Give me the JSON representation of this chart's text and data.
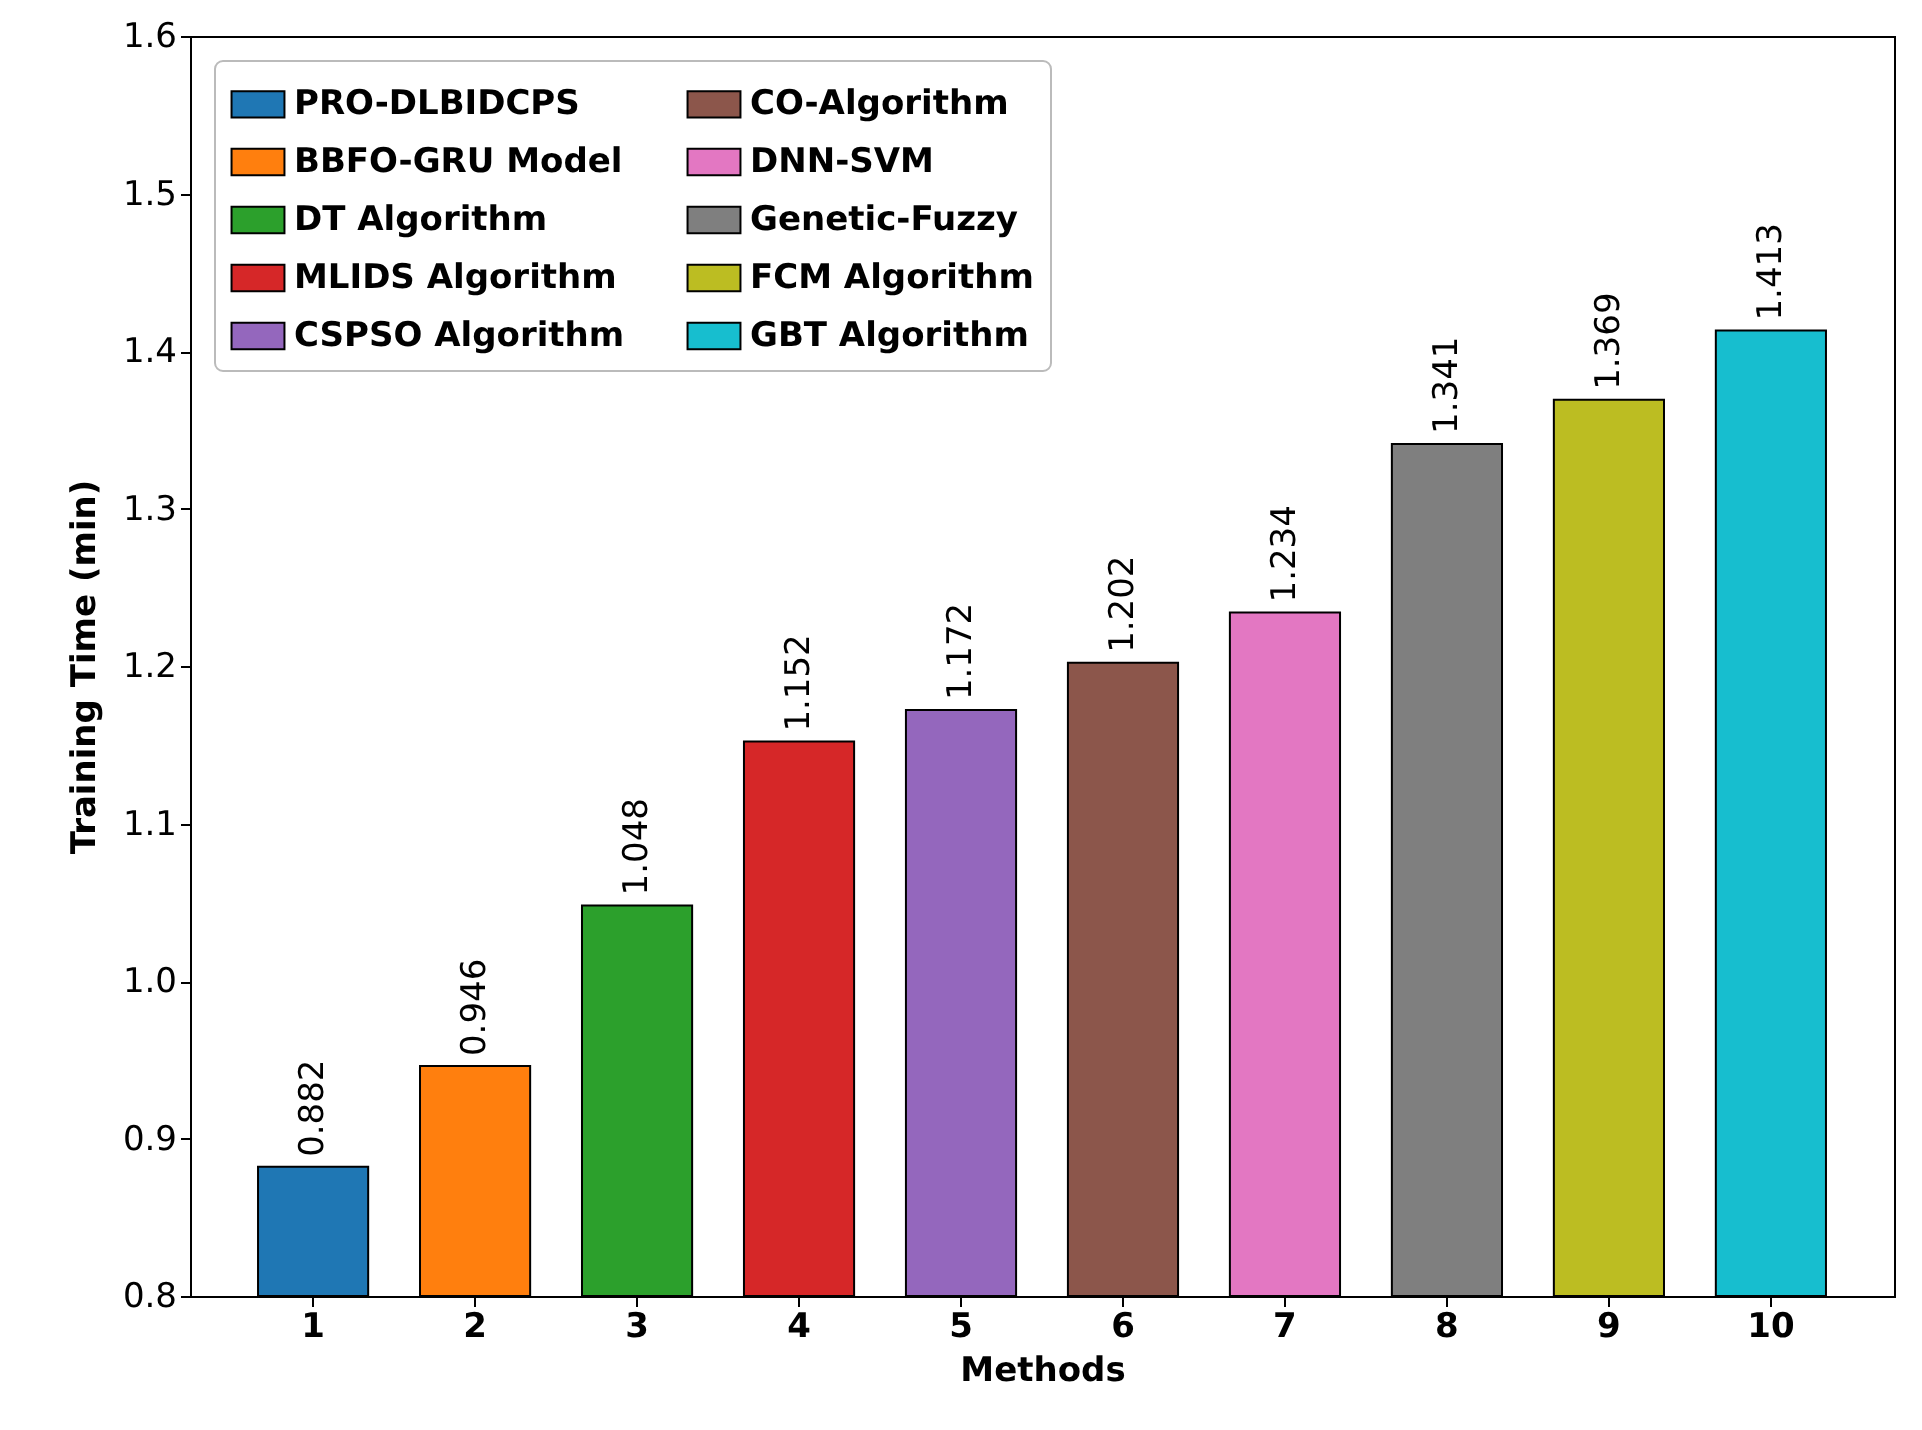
{
  "chart_data": {
    "type": "bar",
    "xlabel": "Methods",
    "ylabel": "Training Time (min)",
    "categories": [
      "1",
      "2",
      "3",
      "4",
      "5",
      "6",
      "7",
      "8",
      "9",
      "10"
    ],
    "series": [
      {
        "name": "PRO-DLBIDCPS",
        "color": "#1f77b4",
        "values": [
          0.882,
          null,
          null,
          null,
          null,
          null,
          null,
          null,
          null,
          null
        ]
      },
      {
        "name": "BBFO-GRU Model",
        "color": "#ff7f0e",
        "values": [
          null,
          0.946,
          null,
          null,
          null,
          null,
          null,
          null,
          null,
          null
        ]
      },
      {
        "name": "DT Algorithm",
        "color": "#2ca02c",
        "values": [
          null,
          null,
          1.048,
          null,
          null,
          null,
          null,
          null,
          null,
          null
        ]
      },
      {
        "name": "MLIDS Algorithm",
        "color": "#d62728",
        "values": [
          null,
          null,
          null,
          1.152,
          null,
          null,
          null,
          null,
          null,
          null
        ]
      },
      {
        "name": "CSPSO Algorithm",
        "color": "#9467bd",
        "values": [
          null,
          null,
          null,
          null,
          1.172,
          null,
          null,
          null,
          null,
          null
        ]
      },
      {
        "name": "CO-Algorithm",
        "color": "#8c564b",
        "values": [
          null,
          null,
          null,
          null,
          null,
          1.202,
          null,
          null,
          null,
          null
        ]
      },
      {
        "name": "DNN-SVM",
        "color": "#e377c2",
        "values": [
          null,
          null,
          null,
          null,
          null,
          null,
          1.234,
          null,
          null,
          null
        ]
      },
      {
        "name": "Genetic-Fuzzy",
        "color": "#7f7f7f",
        "values": [
          null,
          null,
          null,
          null,
          null,
          null,
          null,
          1.341,
          null,
          null
        ]
      },
      {
        "name": "FCM Algorithm",
        "color": "#bcbd22",
        "values": [
          null,
          null,
          null,
          null,
          null,
          null,
          null,
          null,
          1.369,
          null
        ]
      },
      {
        "name": "GBT Algorithm",
        "color": "#17becf",
        "values": [
          null,
          null,
          null,
          null,
          null,
          null,
          null,
          null,
          null,
          1.413
        ]
      }
    ],
    "ylim": [
      0.8,
      1.6
    ],
    "yticks": [
      {
        "value": 0.8,
        "label": "0.8"
      },
      {
        "value": 0.9,
        "label": "0.9"
      },
      {
        "value": 1.0,
        "label": "1.0"
      },
      {
        "value": 1.1,
        "label": "1.1"
      },
      {
        "value": 1.2,
        "label": "1.2"
      },
      {
        "value": 1.3,
        "label": "1.3"
      },
      {
        "value": 1.4,
        "label": "1.4"
      },
      {
        "value": 1.5,
        "label": "1.5"
      },
      {
        "value": 1.6,
        "label": "1.6"
      }
    ],
    "data_labels": true,
    "legend": "top left",
    "grid": false
  }
}
